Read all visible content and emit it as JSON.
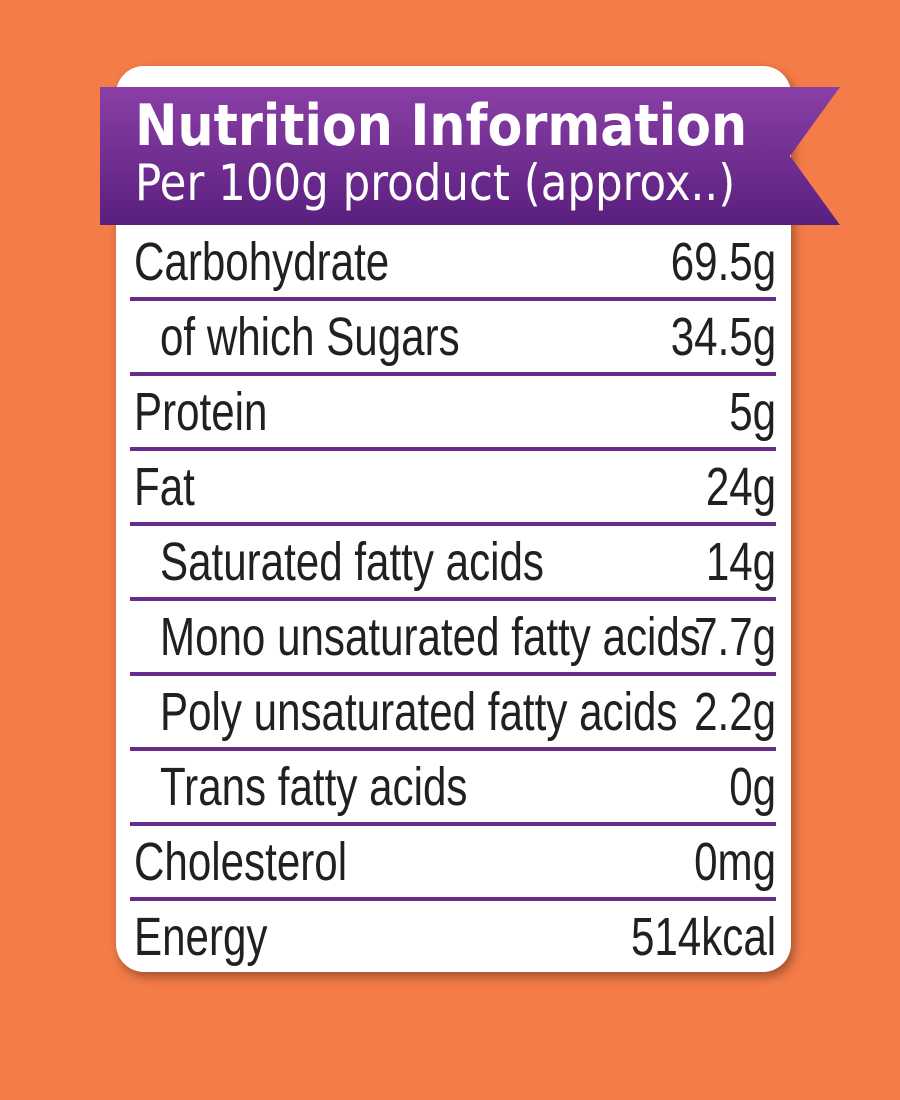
{
  "colors": {
    "background": "#f47c48",
    "card": "#ffffff",
    "banner_light": "#8a3fa6",
    "banner_dark": "#5a1f7e",
    "divider": "#6a2c8c",
    "text": "#231f20"
  },
  "header": {
    "title": "Nutrition Information",
    "subtitle": "Per 100g product (approx..)"
  },
  "rows": [
    {
      "label": "Carbohydrate",
      "value": "69.5g",
      "indent": false
    },
    {
      "label": "of which Sugars",
      "value": "34.5g",
      "indent": true
    },
    {
      "label": "Protein",
      "value": "5g",
      "indent": false
    },
    {
      "label": "Fat",
      "value": "24g",
      "indent": false
    },
    {
      "label": "Saturated fatty acids",
      "value": "14g",
      "indent": true
    },
    {
      "label": "Mono unsaturated fatty acids",
      "value": "7.7g",
      "indent": true
    },
    {
      "label": "Poly unsaturated fatty acids",
      "value": "2.2g",
      "indent": true
    },
    {
      "label": "Trans fatty acids",
      "value": "0g",
      "indent": true
    },
    {
      "label": "Cholesterol",
      "value": "0mg",
      "indent": false
    },
    {
      "label": "Energy",
      "value": "514kcal",
      "indent": false
    }
  ]
}
